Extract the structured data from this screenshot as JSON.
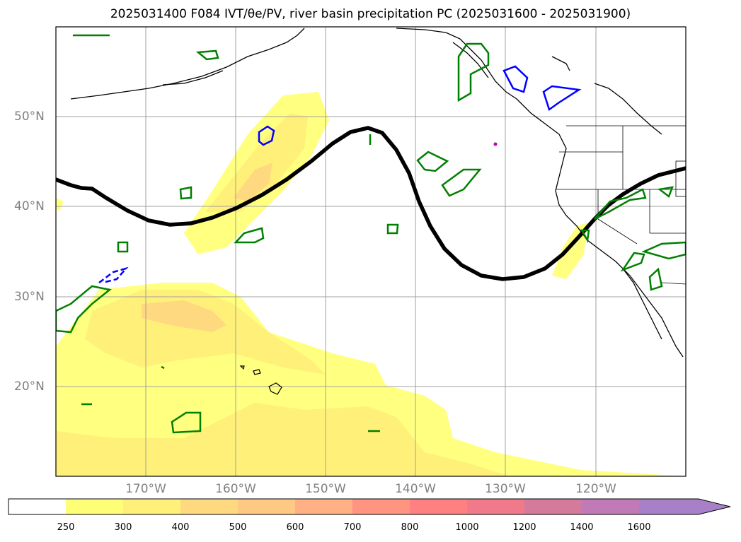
{
  "title": "2025031400 F084 IVT/θe/PV, river basin precipitation PC (2025031600 - 2025031900)",
  "map": {
    "lat_labels": [
      "50°N",
      "40°N",
      "30°N",
      "20°N"
    ],
    "lon_labels": [
      "170°W",
      "160°W",
      "150°W",
      "140°W",
      "130°W",
      "120°W"
    ],
    "extent": {
      "lon_min": -180,
      "lon_max": -110,
      "lat_min": 10,
      "lat_max": 60
    },
    "gridlines": true,
    "fields": {
      "ivt_shading": "yellow-orange filled contours",
      "theta_e_contour_color": "#000000",
      "pv_contours_color": "#008000",
      "precip_contours_color": "#0000ff"
    }
  },
  "colorbar": {
    "ticks": [
      "250",
      "300",
      "400",
      "500",
      "600",
      "700",
      "800",
      "1000",
      "1200",
      "1400",
      "1600"
    ],
    "colors": [
      "#ffff77",
      "#fff07a",
      "#ffd97f",
      "#ffc983",
      "#ffb084",
      "#ff9480",
      "#ff8080",
      "#f07a8a",
      "#d47a9a",
      "#c07ab8",
      "#a880c8"
    ],
    "extend": "max"
  }
}
